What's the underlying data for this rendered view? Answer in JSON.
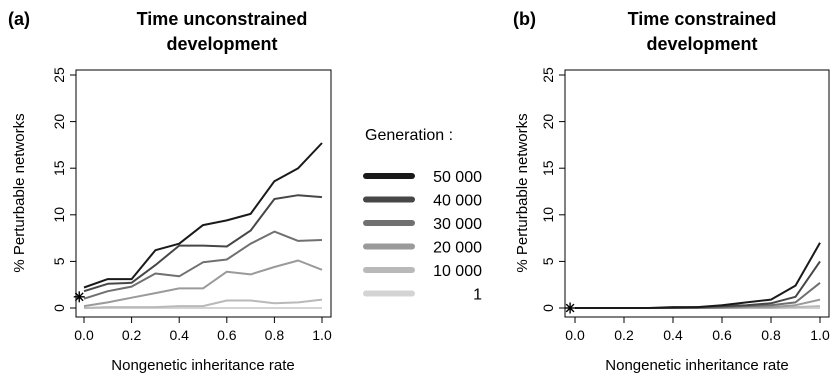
{
  "chart_data": [
    {
      "type": "line",
      "panel_label": "(a)",
      "title": [
        "Time unconstrained",
        "development"
      ],
      "xlabel": "Nongenetic inheritance rate",
      "ylabel": "% Perturbable networks",
      "xlim": [
        0.0,
        1.0
      ],
      "ylim": [
        0,
        25
      ],
      "xticks": [
        "0.0",
        "0.2",
        "0.4",
        "0.6",
        "0.8",
        "1.0"
      ],
      "yticks": [
        "0",
        "5",
        "10",
        "15",
        "20",
        "25"
      ],
      "x": [
        0.0,
        0.1,
        0.2,
        0.3,
        0.4,
        0.5,
        0.6,
        0.7,
        0.8,
        0.9,
        1.0
      ],
      "start_marker": {
        "x": -0.02,
        "y": 1.2,
        "symbol": "*"
      },
      "series": [
        {
          "name": "50 000",
          "color": "#1a1a1a",
          "values": [
            2.2,
            3.1,
            3.1,
            6.2,
            6.9,
            8.9,
            9.4,
            10.1,
            13.6,
            15.0,
            17.7
          ]
        },
        {
          "name": "40 000",
          "color": "#474747",
          "values": [
            1.8,
            2.6,
            2.7,
            4.6,
            6.7,
            6.7,
            6.6,
            8.3,
            11.7,
            12.1,
            11.9
          ]
        },
        {
          "name": "30 000",
          "color": "#707070",
          "values": [
            1.0,
            1.8,
            2.3,
            3.7,
            3.4,
            4.9,
            5.2,
            6.9,
            8.2,
            7.2,
            7.3
          ]
        },
        {
          "name": "20 000",
          "color": "#9a9a9a",
          "values": [
            0.2,
            0.6,
            1.1,
            1.6,
            2.1,
            2.1,
            3.9,
            3.6,
            4.4,
            5.1,
            4.1
          ]
        },
        {
          "name": "10 000",
          "color": "#b9b9b9",
          "values": [
            0.0,
            0.1,
            0.1,
            0.1,
            0.2,
            0.2,
            0.8,
            0.8,
            0.5,
            0.6,
            0.9
          ]
        },
        {
          "name": "1",
          "color": "#d4d4d4",
          "values": [
            0.0,
            0.0,
            0.0,
            0.0,
            0.0,
            0.0,
            0.0,
            0.0,
            0.0,
            0.0,
            0.0
          ]
        }
      ]
    },
    {
      "type": "line",
      "panel_label": "(b)",
      "title": [
        "Time constrained",
        "development"
      ],
      "xlabel": "Nongenetic inheritance rate",
      "ylabel": "% Perturbable networks",
      "xlim": [
        0.0,
        1.0
      ],
      "ylim": [
        0,
        25
      ],
      "xticks": [
        "0.0",
        "0.2",
        "0.4",
        "0.6",
        "0.8",
        "1.0"
      ],
      "yticks": [
        "0",
        "5",
        "10",
        "15",
        "20",
        "25"
      ],
      "x": [
        0.0,
        0.1,
        0.2,
        0.3,
        0.4,
        0.5,
        0.6,
        0.7,
        0.8,
        0.9,
        1.0
      ],
      "start_marker": {
        "x": -0.02,
        "y": 0.0,
        "symbol": "*"
      },
      "series": [
        {
          "name": "50 000",
          "color": "#1a1a1a",
          "values": [
            0.0,
            0.0,
            0.0,
            0.0,
            0.1,
            0.1,
            0.3,
            0.6,
            0.9,
            2.4,
            7.0
          ]
        },
        {
          "name": "40 000",
          "color": "#474747",
          "values": [
            0.0,
            0.0,
            0.0,
            0.0,
            0.0,
            0.1,
            0.2,
            0.3,
            0.5,
            1.2,
            5.0
          ]
        },
        {
          "name": "30 000",
          "color": "#707070",
          "values": [
            0.0,
            0.0,
            0.0,
            0.0,
            0.0,
            0.0,
            0.1,
            0.2,
            0.3,
            0.6,
            2.7
          ]
        },
        {
          "name": "20 000",
          "color": "#9a9a9a",
          "values": [
            0.0,
            0.0,
            0.0,
            0.0,
            0.0,
            0.0,
            0.0,
            0.1,
            0.1,
            0.3,
            0.9
          ]
        },
        {
          "name": "10 000",
          "color": "#b9b9b9",
          "values": [
            0.0,
            0.0,
            0.0,
            0.0,
            0.0,
            0.0,
            0.0,
            0.0,
            0.0,
            0.1,
            0.2
          ]
        },
        {
          "name": "1",
          "color": "#d4d4d4",
          "values": [
            0.0,
            0.0,
            0.0,
            0.0,
            0.0,
            0.0,
            0.0,
            0.0,
            0.0,
            0.0,
            0.0
          ]
        }
      ]
    }
  ],
  "legend": {
    "title": "Generation :",
    "placement": "center",
    "items": [
      {
        "label": "50 000",
        "color": "#1a1a1a"
      },
      {
        "label": "40 000",
        "color": "#474747"
      },
      {
        "label": "30 000",
        "color": "#707070"
      },
      {
        "label": "20 000",
        "color": "#9a9a9a"
      },
      {
        "label": "10 000",
        "color": "#b9b9b9"
      },
      {
        "label": "1",
        "color": "#d4d4d4"
      }
    ]
  }
}
